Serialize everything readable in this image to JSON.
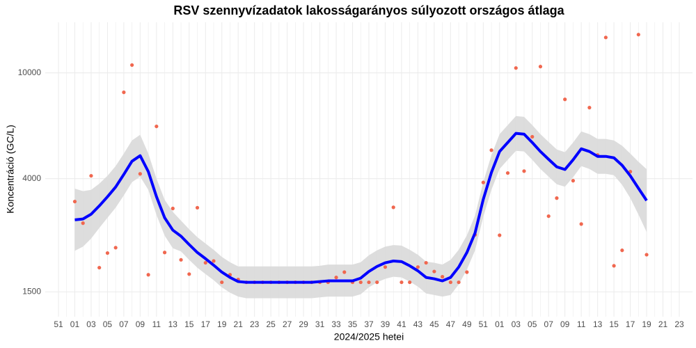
{
  "chart_data": {
    "type": "line",
    "title": "RSV szennyvízadatok lakosságarányos súlyozott országos átlaga",
    "xlabel": "2024/2025 hetei",
    "ylabel": "Koncentráció (GC/L)",
    "scale": "log",
    "ylim": [
      1210,
      15500
    ],
    "yticks": [
      1500,
      4000,
      10000
    ],
    "grid": true,
    "categories": [
      "51",
      null,
      "01",
      null,
      "03",
      null,
      "05",
      null,
      "07",
      null,
      "09",
      null,
      "11",
      null,
      "13",
      null,
      "15",
      null,
      "17",
      null,
      "19",
      null,
      "21",
      null,
      "23",
      null,
      "25",
      null,
      "27",
      null,
      "29",
      null,
      "31",
      null,
      "33",
      null,
      "35",
      null,
      "37",
      null,
      "39",
      null,
      "41",
      null,
      "43",
      null,
      "45",
      null,
      "47",
      null,
      "49",
      null,
      "51",
      null,
      "01",
      null,
      "03",
      null,
      "05",
      null,
      "07",
      null,
      "09",
      null,
      "11",
      null,
      "13",
      null,
      "15",
      null,
      "17",
      null,
      "19",
      null,
      "21",
      null,
      "23"
    ],
    "series": [
      {
        "kind": "band",
        "color": "#d9d9d9",
        "lower": [
          null,
          null,
          2140,
          2220,
          2380,
          2610,
          2850,
          3110,
          3460,
          3880,
          4070,
          3630,
          2920,
          2440,
          2190,
          2130,
          1980,
          1850,
          1750,
          1660,
          1560,
          1490,
          1440,
          1420,
          1420,
          1420,
          1420,
          1420,
          1420,
          1420,
          1420,
          1420,
          1430,
          1440,
          1440,
          1440,
          1440,
          1470,
          1560,
          1630,
          1680,
          1710,
          1700,
          1640,
          1570,
          1480,
          1460,
          1440,
          1460,
          1600,
          1820,
          2150,
          2870,
          3630,
          4350,
          4710,
          5090,
          5060,
          4710,
          4350,
          4070,
          3810,
          3730,
          4050,
          4460,
          4350,
          4170,
          4170,
          4120,
          3790,
          3380,
          2930,
          2520,
          null,
          null,
          null,
          null
        ],
        "upper": [
          null,
          null,
          3670,
          3590,
          3630,
          3830,
          4100,
          4460,
          4970,
          5570,
          5850,
          4970,
          4000,
          3330,
          3000,
          2780,
          2580,
          2410,
          2280,
          2160,
          2030,
          1940,
          1870,
          1870,
          1870,
          1870,
          1870,
          1870,
          1870,
          1870,
          1870,
          1870,
          1880,
          1900,
          1900,
          1900,
          1900,
          1940,
          2060,
          2150,
          2220,
          2250,
          2240,
          2160,
          2070,
          1950,
          1930,
          1900,
          1980,
          2160,
          2450,
          2910,
          3880,
          4900,
          5880,
          6360,
          6880,
          6830,
          6360,
          5880,
          5500,
          5150,
          5030,
          5470,
          6020,
          5880,
          5640,
          5640,
          5570,
          5320,
          4970,
          4630,
          4340,
          null,
          null,
          null,
          null
        ]
      },
      {
        "kind": "points",
        "color": "#f0674f",
        "values": [
          null,
          null,
          3280,
          2720,
          4100,
          1850,
          2100,
          2200,
          8450,
          10700,
          4170,
          1740,
          6290,
          2110,
          3090,
          1980,
          1750,
          3110,
          1930,
          1960,
          1630,
          1740,
          1670,
          1630,
          1630,
          1630,
          1630,
          1630,
          1630,
          1630,
          1630,
          1630,
          1630,
          1630,
          1700,
          1780,
          1630,
          1630,
          1630,
          1630,
          1860,
          3120,
          1630,
          1630,
          1860,
          1930,
          1790,
          1710,
          1630,
          1630,
          1780,
          2460,
          3870,
          5120,
          2450,
          4200,
          10430,
          4270,
          5750,
          10560,
          2890,
          3380,
          7950,
          3930,
          2700,
          7400,
          4910,
          13590,
          1880,
          2150,
          4250,
          13930,
          2070,
          null,
          null,
          null,
          null
        ]
      },
      {
        "kind": "line",
        "color": "#0000ff",
        "values": [
          null,
          null,
          2800,
          2820,
          2940,
          3160,
          3420,
          3720,
          4150,
          4650,
          4880,
          4250,
          3420,
          2850,
          2560,
          2430,
          2260,
          2110,
          2000,
          1890,
          1780,
          1700,
          1640,
          1630,
          1630,
          1630,
          1630,
          1630,
          1630,
          1630,
          1630,
          1630,
          1640,
          1650,
          1650,
          1650,
          1650,
          1690,
          1790,
          1870,
          1930,
          1960,
          1950,
          1880,
          1800,
          1700,
          1680,
          1650,
          1700,
          1860,
          2110,
          2500,
          3340,
          4220,
          5060,
          5470,
          5920,
          5880,
          5470,
          5060,
          4730,
          4430,
          4330,
          4710,
          5180,
          5060,
          4850,
          4850,
          4790,
          4490,
          4100,
          3680,
          3310,
          null,
          null,
          null,
          null
        ]
      }
    ]
  }
}
